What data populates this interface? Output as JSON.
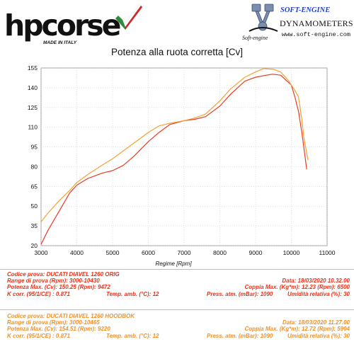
{
  "header": {
    "brand": "hpcorse",
    "made_in": "MADE IN ITALY",
    "engine_brand": "SOFT-ENGINE",
    "engine_small": "Soft-engine",
    "dynamometers": "DYNAMOMETERS",
    "url": "www.soft-engine.com"
  },
  "chart_data": {
    "type": "line",
    "title": "Potenza alla ruota corretta [Cv]",
    "xlabel": "Regime [Rpm]",
    "ylabel": "",
    "xlim": [
      3000,
      11000
    ],
    "ylim": [
      20,
      155
    ],
    "xticks": [
      "3000",
      "4000",
      "5000",
      "6000",
      "7000",
      "8000",
      "9000",
      "10000",
      "11000"
    ],
    "yticks": [
      "20",
      "35",
      "50",
      "65",
      "80",
      "95",
      "110",
      "125",
      "140",
      "155"
    ],
    "grid": true,
    "series": [
      {
        "color": "#ea3a25",
        "x": [
          3000,
          3200,
          3500,
          3800,
          4000,
          4300,
          4700,
          5000,
          5300,
          5600,
          6000,
          6300,
          6600,
          7000,
          7300,
          7600,
          8000,
          8300,
          8700,
          9000,
          9300,
          9472,
          9700,
          10000,
          10100,
          10200,
          10300,
          10430
        ],
        "y": [
          21,
          32,
          46,
          60,
          66,
          71,
          75,
          77,
          81,
          88,
          99,
          106,
          112,
          115,
          116,
          118,
          126,
          135,
          145,
          148,
          149.5,
          150.25,
          149.5,
          142,
          133,
          122,
          105,
          78
        ]
      },
      {
        "color": "#f5a033",
        "x": [
          3000,
          3200,
          3500,
          3800,
          4000,
          4300,
          4700,
          5000,
          5300,
          5600,
          6000,
          6300,
          6600,
          7000,
          7300,
          7600,
          8000,
          8300,
          8700,
          9000,
          9220,
          9500,
          9700,
          9900,
          10000,
          10100,
          10200,
          10300,
          10350,
          10465
        ],
        "y": [
          38,
          45,
          54,
          62,
          68,
          74,
          81,
          86,
          92,
          98,
          106,
          111,
          113,
          115,
          117,
          120,
          130,
          139,
          148,
          152,
          154.51,
          154,
          152,
          146,
          142,
          138,
          133,
          115,
          102,
          85
        ]
      }
    ]
  },
  "tests": [
    {
      "code": "Codice prova: DUCATI DIAVEL 1260 ORIG",
      "date": "Data: 18/03/2020  10.32.00",
      "range": "Range di prova (Rpm): 3000-10430",
      "power": "Potenza Max. (Cv): 150.25   (Rpm): 9472",
      "torque": "Coppia Max. (Kg*m): 12.23   (Rpm): 6500",
      "kcorr": "K corr. (95/1/CE) : 0.871",
      "temp": "Temp. amb. (°C): 12",
      "press": "Press. atm. (mBar): 1090",
      "humidity": "Umidità relativa (%): 30"
    },
    {
      "code": "Codice prova: DUCATI DIAVEL 1260 HOODBOK",
      "date": "Data: 18/03/2020  11.27.00",
      "range": "Range di prova (Rpm): 3000-10465",
      "power": "Potenza Max. (Cv): 154.51   (Rpm): 9220",
      "torque": "Coppia Max. (Kg*m): 12.72   (Rpm): 5904",
      "kcorr": "K corr. (95/1/CE) : 0.871",
      "temp": "Temp. amb. (°C): 12",
      "press": "Press. atm. (mBar): 1090",
      "humidity": "Umidità relativa (%): 30"
    }
  ]
}
